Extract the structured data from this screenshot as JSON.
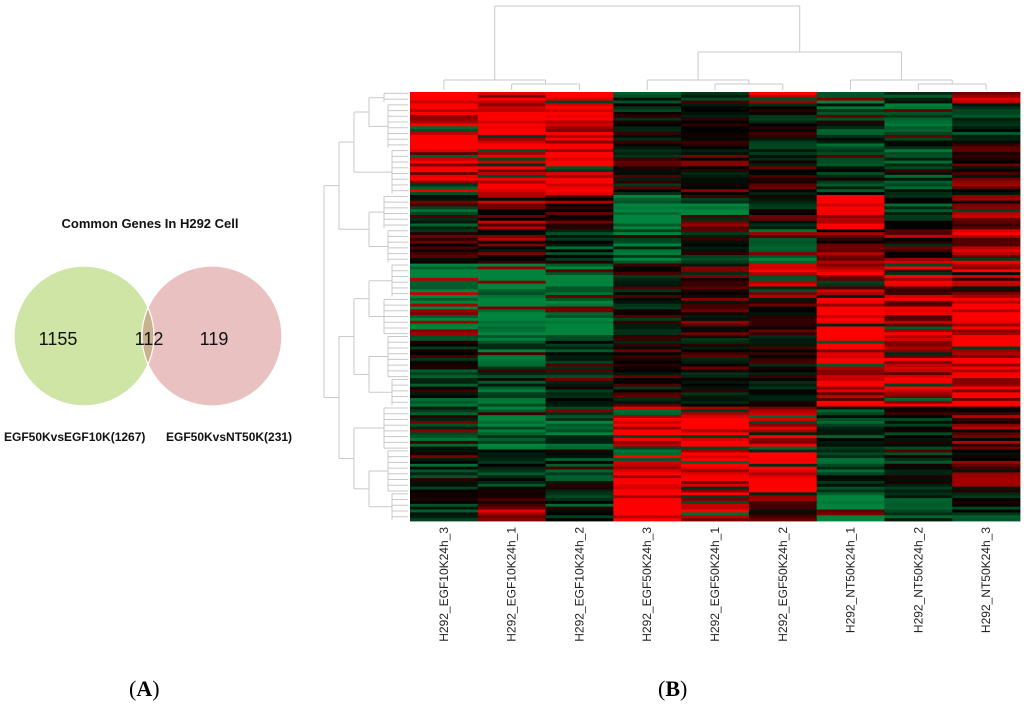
{
  "panel_a": {
    "label_open": "(",
    "letter": "A",
    "label_close": ")"
  },
  "panel_b": {
    "label_open": "(",
    "letter": "B",
    "label_close": ")"
  },
  "chart_data": [
    {
      "type": "venn",
      "title": "Common Genes In H292 Cell",
      "sets": [
        {
          "name": "EGF50KvsEGF10K(1267)",
          "total": 1267,
          "only": 1155,
          "color": "#cfe5a6"
        },
        {
          "name": "EGF50KvsNT50K(231)",
          "total": 231,
          "only": 119,
          "color": "#e9c1c1"
        }
      ],
      "intersection": 112,
      "intersection_color": "#c9b18e"
    },
    {
      "type": "heatmap",
      "columns": [
        "H292_EGF10K24h_3",
        "H292_EGF10K24h_1",
        "H292_EGF10K24h_2",
        "H292_EGF50K24h_3",
        "H292_EGF50K24h_1",
        "H292_EGF50K24h_2",
        "H292_NT50K24h_1",
        "H292_NT50K24h_2",
        "H292_NT50K24h_3"
      ],
      "colors": {
        "high": "#ff0000",
        "mid": "#000000",
        "low": "#00843d"
      },
      "column_dendrogram": "((EGF10K_3,(EGF10K_1,EGF10K_2)),((EGF50K_3,(EGF50K_1,EGF50K_2)),(NT50K_1,(NT50K_2,NT50K_3))))",
      "row_blocks": [
        {
          "rows": "1-4",
          "values": [
            0.9,
            0.8,
            0.9,
            -0.4,
            -0.6,
            0.8,
            -0.9,
            -0.4,
            0.7
          ]
        },
        {
          "rows": "5-20",
          "values": [
            0.9,
            1.0,
            0.9,
            -0.1,
            -0.2,
            -0.1,
            -0.5,
            -0.5,
            -0.3
          ]
        },
        {
          "rows": "21-36",
          "values": [
            0.8,
            0.9,
            0.8,
            0.0,
            0.1,
            0.0,
            -0.4,
            -0.5,
            0.2
          ]
        },
        {
          "rows": "37-48",
          "values": [
            -0.5,
            0.4,
            0.4,
            -1.0,
            -0.7,
            -0.3,
            0.9,
            -0.4,
            0.5
          ]
        },
        {
          "rows": "49-60",
          "values": [
            0.0,
            0.4,
            -0.4,
            -0.6,
            -0.2,
            -0.6,
            0.3,
            0.4,
            0.6
          ]
        },
        {
          "rows": "61-72",
          "values": [
            -1.0,
            -1.0,
            -1.0,
            0.0,
            0.1,
            0.9,
            0.7,
            0.6,
            0.6
          ]
        },
        {
          "rows": "73-85",
          "values": [
            -1.0,
            -1.0,
            -1.0,
            -0.1,
            0.1,
            0.0,
            0.9,
            0.7,
            0.8
          ]
        },
        {
          "rows": "86-100",
          "values": [
            -0.3,
            -0.6,
            -0.4,
            0.0,
            0.0,
            0.0,
            0.9,
            0.8,
            0.9
          ]
        },
        {
          "rows": "101-110",
          "values": [
            -0.4,
            -0.5,
            -0.3,
            0.0,
            0.0,
            0.0,
            0.7,
            0.9,
            0.8
          ]
        },
        {
          "rows": "111-125",
          "values": [
            -0.5,
            -0.7,
            -0.6,
            1.0,
            1.0,
            0.9,
            -0.4,
            -0.2,
            0.3
          ]
        },
        {
          "rows": "126-140",
          "values": [
            -0.4,
            -0.3,
            -0.5,
            1.0,
            0.9,
            0.9,
            -0.5,
            -0.3,
            0.2
          ]
        },
        {
          "rows": "141-150",
          "values": [
            -0.3,
            0.5,
            -0.4,
            1.0,
            0.9,
            0.3,
            -1.0,
            -0.5,
            -0.3
          ]
        }
      ]
    }
  ]
}
